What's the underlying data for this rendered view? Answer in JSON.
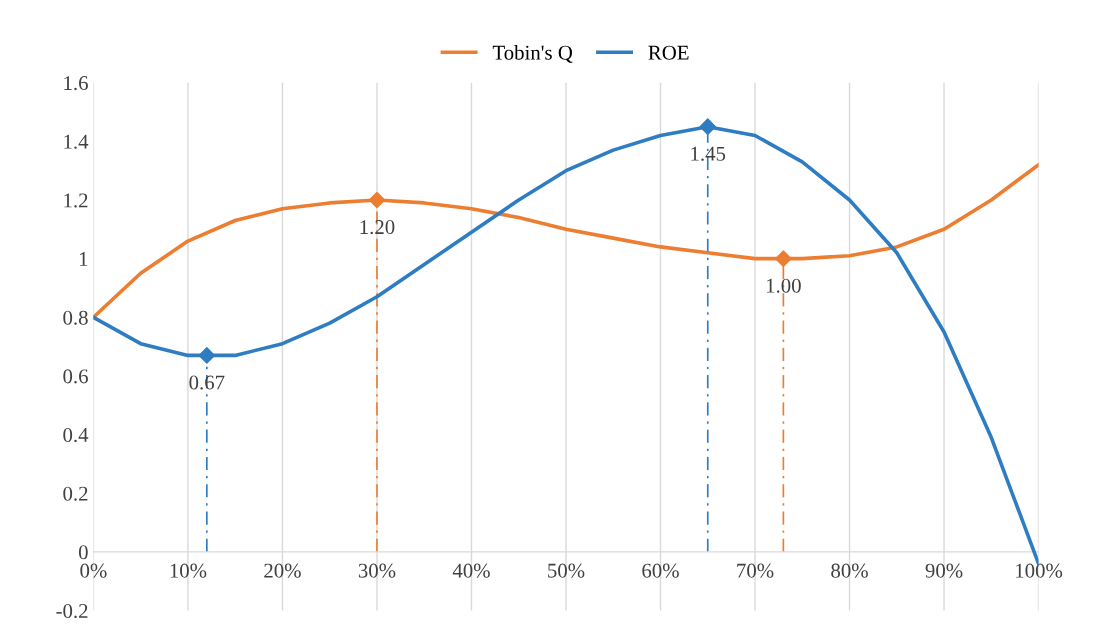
{
  "chart_data": {
    "type": "line",
    "x": [
      0,
      5,
      10,
      15,
      20,
      25,
      30,
      35,
      40,
      45,
      50,
      55,
      60,
      65,
      70,
      75,
      80,
      85,
      90,
      95,
      100
    ],
    "series": [
      {
        "name": "Tobin's Q",
        "color": "#ed7d31",
        "values": [
          0.8,
          0.95,
          1.06,
          1.13,
          1.17,
          1.19,
          1.2,
          1.19,
          1.17,
          1.14,
          1.1,
          1.07,
          1.04,
          1.02,
          1.0,
          1.0,
          1.01,
          1.04,
          1.1,
          1.2,
          1.32
        ]
      },
      {
        "name": "ROE",
        "color": "#2e7dc2",
        "values": [
          0.8,
          0.71,
          0.67,
          0.67,
          0.71,
          0.78,
          0.87,
          0.98,
          1.09,
          1.2,
          1.3,
          1.37,
          1.42,
          1.45,
          1.42,
          1.33,
          1.2,
          1.02,
          0.75,
          0.39,
          -0.04
        ]
      },
      {
        "type": "scatter",
        "color": "#ed7d31",
        "marker": "diamond",
        "line_style": "dashed",
        "x": [
          30,
          73
        ],
        "values": [
          1.2,
          1.0
        ],
        "value_labels": [
          "1.20",
          "1.00"
        ]
      },
      {
        "type": "scatter",
        "color": "#2e7dc2",
        "marker": "diamond",
        "line_style": "dashed",
        "x": [
          12,
          65
        ],
        "values": [
          0.67,
          1.45
        ],
        "value_labels": [
          "0.67",
          "1.45"
        ]
      }
    ],
    "xlim": [
      0,
      100
    ],
    "xticks": [
      {
        "value": 0,
        "label": "0%"
      },
      {
        "value": 10,
        "label": "10%"
      },
      {
        "value": 20,
        "label": "20%"
      },
      {
        "value": 30,
        "label": "30%"
      },
      {
        "value": 40,
        "label": "40%"
      },
      {
        "value": 50,
        "label": "50%"
      },
      {
        "value": 60,
        "label": "60%"
      },
      {
        "value": 70,
        "label": "70%"
      },
      {
        "value": 80,
        "label": "80%"
      },
      {
        "value": 90,
        "label": "90%"
      },
      {
        "value": 100,
        "label": "100%"
      }
    ],
    "ylim": [
      -0.2,
      1.6
    ],
    "yticks": [
      -0.2,
      0,
      0.2,
      0.4,
      0.6,
      0.8,
      1,
      1.2,
      1.4,
      1.6
    ],
    "grid": "x",
    "legend": "top",
    "marker": "none",
    "line_style": "solid"
  }
}
